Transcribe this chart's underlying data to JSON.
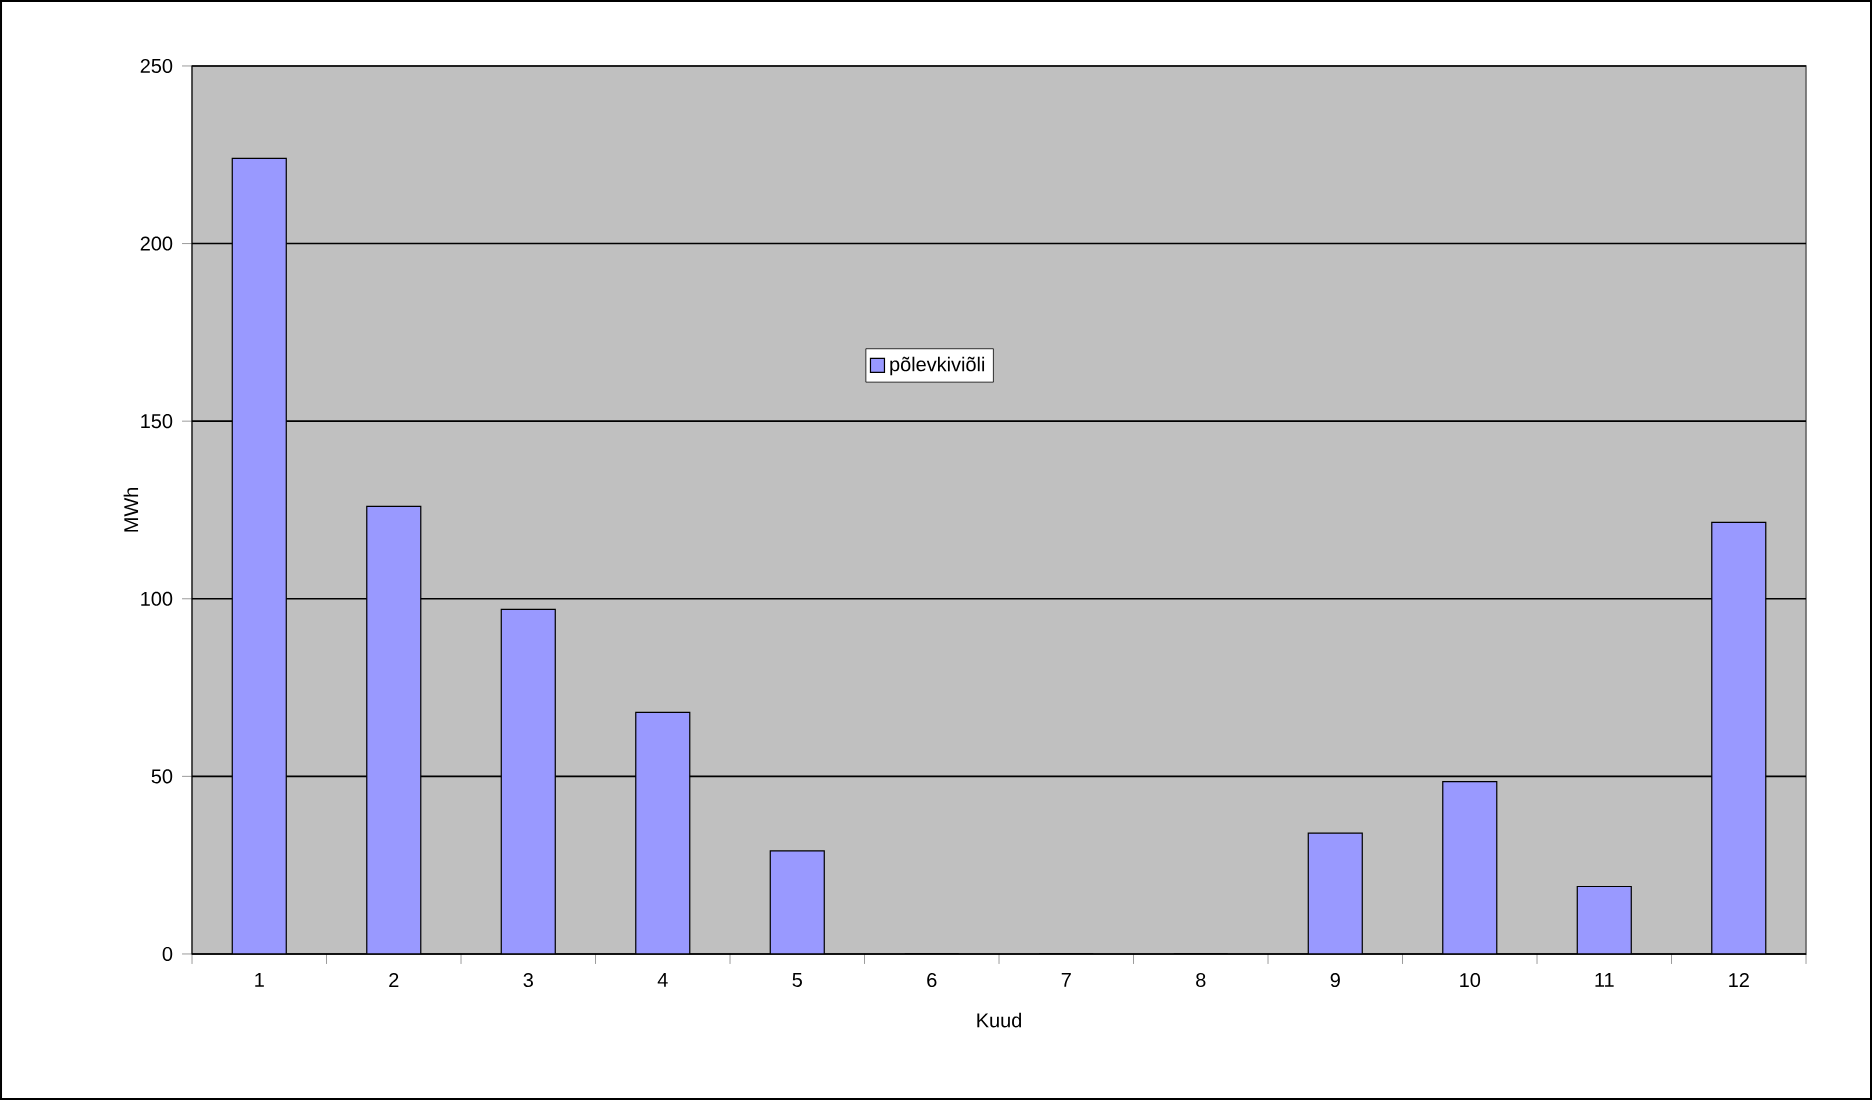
{
  "chart_data": {
    "type": "bar",
    "xlabel": "Kuud",
    "ylabel": "MWh",
    "categories": [
      "1",
      "2",
      "3",
      "4",
      "5",
      "6",
      "7",
      "8",
      "9",
      "10",
      "11",
      "12"
    ],
    "series": [
      {
        "name": "põlevkiviõli",
        "color": "#9999ff",
        "values": [
          224,
          126,
          97,
          68,
          29,
          0,
          0,
          0,
          34,
          48.5,
          19,
          121.5
        ]
      }
    ],
    "ylim": [
      0,
      250
    ],
    "yticks": [
      0,
      50,
      100,
      150,
      200,
      250
    ],
    "grid": "y",
    "legend": "top"
  }
}
